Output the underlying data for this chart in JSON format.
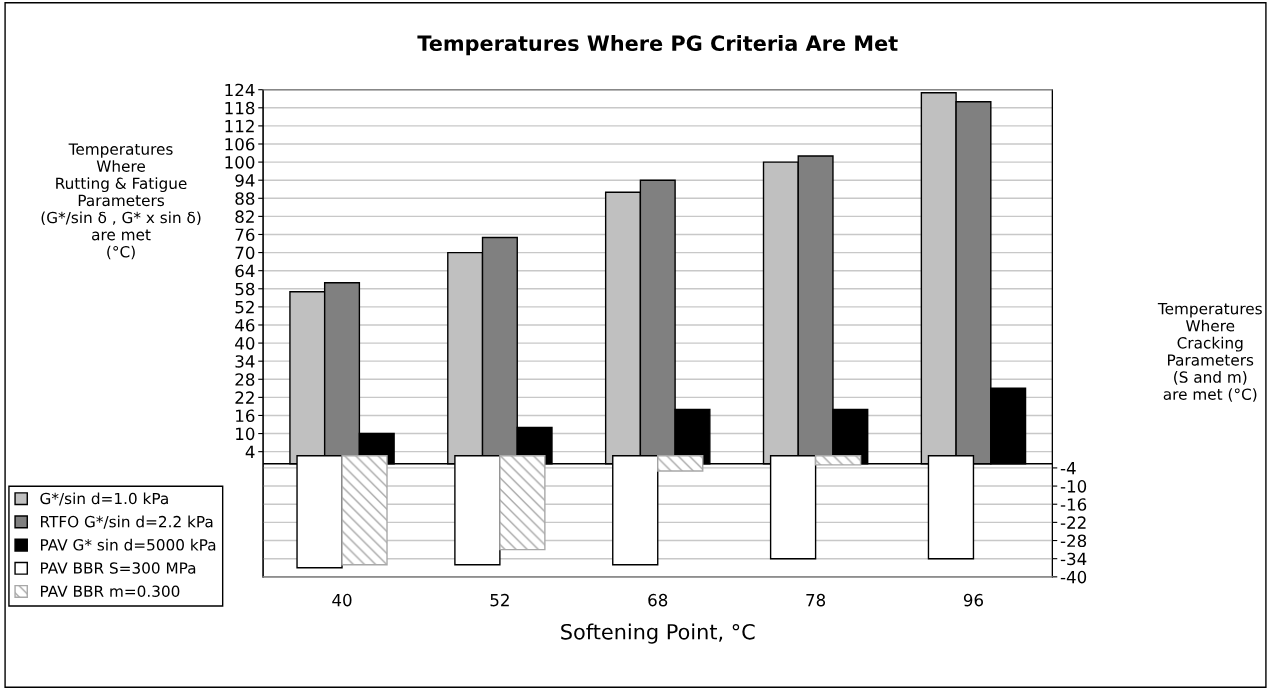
{
  "chart_data": {
    "type": "bar",
    "title": "Temperatures Where PG Criteria Are Met",
    "xlabel": "Softening Point, °C",
    "ylabel": "Temperatures\nWhere\nRutting & Fatigue\nParameters\n(G*/sin δ , G* x sin δ)\nare met\n(°C)",
    "y2label": "Temperatures\nWhere\nCracking\nParameters\n(S and m)\nare met (°C)",
    "categories": [
      "40",
      "52",
      "68",
      "78",
      "96"
    ],
    "series": [
      {
        "name": "G*/sin d=1.0 kPa",
        "color": "#c0c0c0",
        "values": [
          57,
          70,
          90,
          100,
          123
        ]
      },
      {
        "name": "RTFO G*/sin d=2.2 kPa",
        "color": "#808080",
        "values": [
          60,
          75,
          94,
          102,
          120
        ]
      },
      {
        "name": "PAV G* sin d=5000 kPa",
        "color": "#000000",
        "values": [
          10,
          12,
          18,
          18,
          25
        ]
      },
      {
        "name": "PAV BBR S=300 MPa",
        "color": "#ffffff",
        "axis": "y2",
        "values": [
          -37,
          -36,
          -36,
          -34,
          -34
        ]
      },
      {
        "name": "PAV BBR m=0.300",
        "color": "#a8a8a8",
        "axis": "y2",
        "values": [
          -36,
          -31,
          -5,
          -3,
          null
        ]
      }
    ],
    "ylim": [
      -37.5,
      124
    ],
    "yticks": [
      4,
      10,
      16,
      22,
      28,
      34,
      40,
      46,
      52,
      58,
      64,
      70,
      76,
      82,
      88,
      94,
      100,
      106,
      112,
      118,
      124
    ],
    "y2lim": [
      -40,
      121
    ],
    "y2ticks": [
      -4,
      -10,
      -16,
      -22,
      -28,
      -34,
      -40
    ],
    "grid": "y",
    "legend": "bottom left"
  }
}
